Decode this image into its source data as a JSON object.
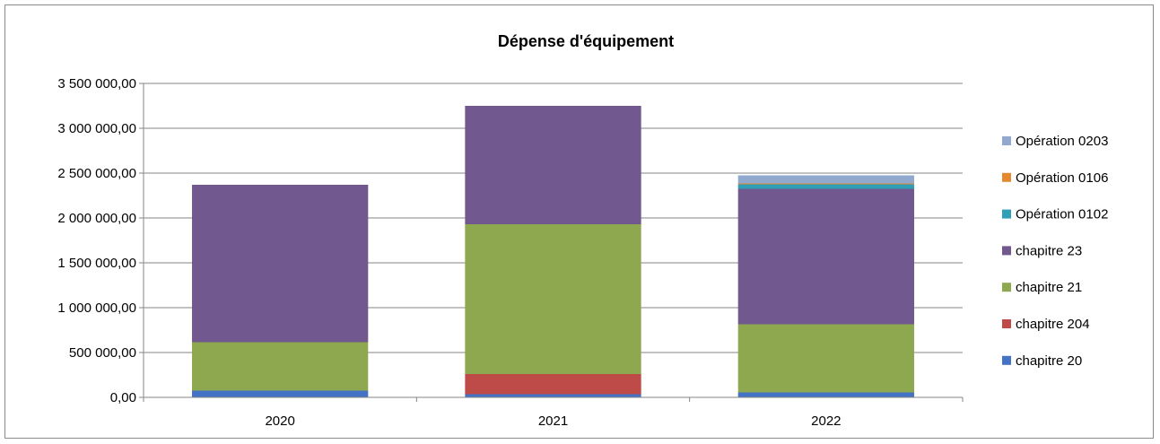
{
  "chart_data": {
    "type": "bar",
    "stacked": true,
    "title": "Dépense d'équipement",
    "xlabel": "",
    "ylabel": "",
    "ylim": [
      0,
      3500000
    ],
    "yticks": [
      0,
      500000,
      1000000,
      1500000,
      2000000,
      2500000,
      3000000,
      3500000
    ],
    "ytick_labels": [
      "0,00",
      "500 000,00",
      "1 000 000,00",
      "1 500 000,00",
      "2 000 000,00",
      "2 500 000,00",
      "3 000 000,00",
      "3 500 000,00"
    ],
    "grid": true,
    "legend_position": "right",
    "categories": [
      "2020",
      "2021",
      "2022"
    ],
    "series": [
      {
        "name": "chapitre 20",
        "color": "#4472c4",
        "values": [
          75000,
          35000,
          55000
        ]
      },
      {
        "name": "chapitre 204",
        "color": "#be4b48",
        "values": [
          0,
          225000,
          0
        ]
      },
      {
        "name": "chapitre 21",
        "color": "#8ea84f",
        "values": [
          540000,
          1670000,
          760000
        ]
      },
      {
        "name": "chapitre 23",
        "color": "#71588f",
        "values": [
          1755000,
          1320000,
          1510000
        ]
      },
      {
        "name": "Opération 0102",
        "color": "#2e9fb5",
        "values": [
          0,
          0,
          50000
        ]
      },
      {
        "name": "Opération 0106",
        "color": "#e6882f",
        "values": [
          0,
          0,
          10000
        ]
      },
      {
        "name": "Opération 0203",
        "color": "#92a9cf",
        "values": [
          0,
          0,
          90000
        ]
      }
    ]
  }
}
